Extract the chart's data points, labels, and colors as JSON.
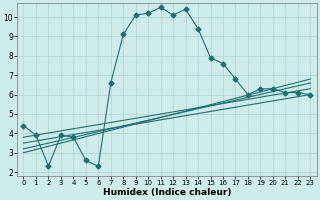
{
  "xlabel": "Humidex (Indice chaleur)",
  "bg_color": "#ceecea",
  "grid_color": "#b2d8d5",
  "line_color": "#1e7070",
  "xlim": [
    -0.5,
    23.5
  ],
  "ylim": [
    1.8,
    10.7
  ],
  "yticks": [
    2,
    3,
    4,
    5,
    6,
    7,
    8,
    9,
    10
  ],
  "xticks": [
    0,
    1,
    2,
    3,
    4,
    5,
    6,
    7,
    8,
    9,
    10,
    11,
    12,
    13,
    14,
    15,
    16,
    17,
    18,
    19,
    20,
    21,
    22,
    23
  ],
  "xtick_labels": [
    "0",
    "1",
    "2",
    "3",
    "4",
    "5",
    "6",
    "7",
    "8",
    "9",
    "10",
    "11",
    "12",
    "13",
    "14",
    "15",
    "16",
    "17",
    "18",
    "19",
    "20",
    "21",
    "22",
    "23"
  ],
  "series1_x": [
    0,
    1,
    2,
    3,
    4,
    5,
    6,
    7,
    8,
    9,
    10,
    11,
    12,
    13,
    14,
    15,
    16,
    17,
    18,
    19,
    20,
    21,
    22,
    23
  ],
  "series1_y": [
    4.4,
    3.9,
    2.3,
    3.9,
    3.8,
    2.6,
    2.3,
    6.6,
    9.1,
    10.1,
    10.2,
    10.5,
    10.1,
    10.4,
    9.4,
    7.9,
    7.6,
    6.8,
    6.0,
    6.3,
    6.3,
    6.1,
    6.1,
    6.0
  ],
  "line1_x": [
    0,
    23
  ],
  "line1_y": [
    3.8,
    6.3
  ],
  "line2_x": [
    0,
    23
  ],
  "line2_y": [
    3.5,
    6.0
  ],
  "line3_x": [
    0,
    23
  ],
  "line3_y": [
    3.2,
    6.6
  ],
  "line4_x": [
    0,
    23
  ],
  "line4_y": [
    3.0,
    6.8
  ]
}
